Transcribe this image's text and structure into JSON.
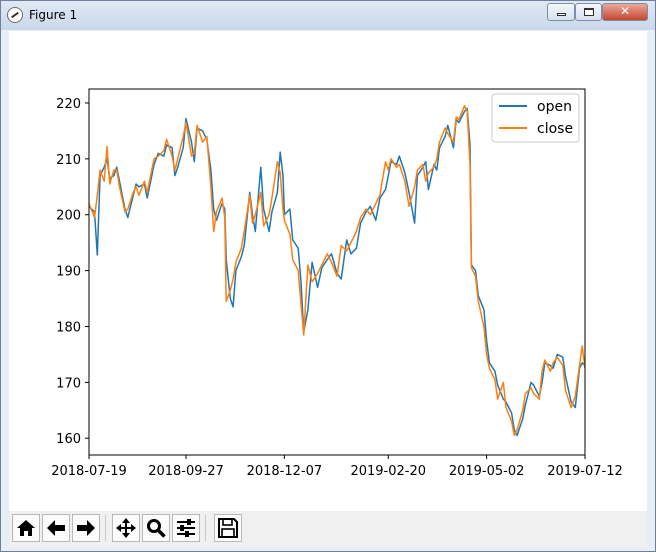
{
  "window": {
    "title": "Figure 1"
  },
  "toolbar": {
    "home_icon": "home-icon",
    "back_icon": "arrow-left-icon",
    "forward_icon": "arrow-right-icon",
    "pan_icon": "move-icon",
    "zoom_icon": "magnifier-icon",
    "configure_icon": "sliders-icon",
    "save_icon": "floppy-disk-icon"
  },
  "chart_data": {
    "type": "line",
    "title": "",
    "xlabel": "",
    "ylabel": "",
    "x_ticks": [
      "2018-07-19",
      "2018-09-27",
      "2018-12-07",
      "2019-02-20",
      "2019-05-02",
      "2019-07-12"
    ],
    "y_ticks": [
      "160",
      "170",
      "180",
      "190",
      "200",
      "210",
      "220"
    ],
    "xlim": [
      "2018-07-19",
      "2019-07-12"
    ],
    "ylim": [
      157,
      222.5
    ],
    "grid": false,
    "legend": "top-right",
    "colors": {
      "open": "#1f77b4",
      "close": "#ff7f0e"
    },
    "series": [
      {
        "name": "open",
        "points": [
          [
            "2018-07-19",
            201.5
          ],
          [
            "2018-07-23",
            200.5
          ],
          [
            "2018-07-25",
            192.8
          ],
          [
            "2018-07-27",
            207.0
          ],
          [
            "2018-07-30",
            208.5
          ],
          [
            "2018-08-01",
            210.0
          ],
          [
            "2018-08-03",
            206.5
          ],
          [
            "2018-08-06",
            207.0
          ],
          [
            "2018-08-08",
            208.5
          ],
          [
            "2018-08-10",
            206.0
          ],
          [
            "2018-08-14",
            201.0
          ],
          [
            "2018-08-16",
            199.5
          ],
          [
            "2018-08-20",
            203.5
          ],
          [
            "2018-08-22",
            205.5
          ],
          [
            "2018-08-24",
            205.0
          ],
          [
            "2018-08-28",
            205.5
          ],
          [
            "2018-08-30",
            203.0
          ],
          [
            "2018-09-04",
            209.0
          ],
          [
            "2018-09-07",
            211.0
          ],
          [
            "2018-09-11",
            210.5
          ],
          [
            "2018-09-13",
            212.5
          ],
          [
            "2018-09-17",
            212.0
          ],
          [
            "2018-09-19",
            207.0
          ],
          [
            "2018-09-21",
            208.5
          ],
          [
            "2018-09-25",
            212.0
          ],
          [
            "2018-09-27",
            217.2
          ],
          [
            "2018-10-01",
            213.0
          ],
          [
            "2018-10-03",
            209.5
          ],
          [
            "2018-10-05",
            215.5
          ],
          [
            "2018-10-09",
            215.0
          ],
          [
            "2018-10-12",
            213.5
          ],
          [
            "2018-10-15",
            208.0
          ],
          [
            "2018-10-17",
            201.0
          ],
          [
            "2018-10-19",
            199.0
          ],
          [
            "2018-10-23",
            202.0
          ],
          [
            "2018-10-25",
            201.0
          ],
          [
            "2018-10-26",
            192.0
          ],
          [
            "2018-10-29",
            185.0
          ],
          [
            "2018-10-31",
            183.5
          ],
          [
            "2018-11-02",
            190.0
          ],
          [
            "2018-11-06",
            192.5
          ],
          [
            "2018-11-08",
            194.5
          ],
          [
            "2018-11-12",
            204.0
          ],
          [
            "2018-11-14",
            200.0
          ],
          [
            "2018-11-16",
            197.0
          ],
          [
            "2018-11-20",
            208.5
          ],
          [
            "2018-11-22",
            201.0
          ],
          [
            "2018-11-26",
            197.0
          ],
          [
            "2018-11-28",
            200.5
          ],
          [
            "2018-12-02",
            204.0
          ],
          [
            "2018-12-04",
            211.2
          ],
          [
            "2018-12-06",
            207.0
          ],
          [
            "2018-12-07",
            200.0
          ],
          [
            "2018-12-11",
            201.0
          ],
          [
            "2018-12-13",
            195.5
          ],
          [
            "2018-12-17",
            194.0
          ],
          [
            "2018-12-19",
            188.0
          ],
          [
            "2018-12-21",
            179.0
          ],
          [
            "2018-12-24",
            183.0
          ],
          [
            "2018-12-27",
            191.5
          ],
          [
            "2018-12-31",
            187.0
          ],
          [
            "2019-01-03",
            190.5
          ],
          [
            "2019-01-07",
            192.0
          ],
          [
            "2019-01-10",
            193.0
          ],
          [
            "2019-01-14",
            189.5
          ],
          [
            "2019-01-17",
            188.5
          ],
          [
            "2019-01-21",
            195.5
          ],
          [
            "2019-01-24",
            193.0
          ],
          [
            "2019-01-28",
            194.0
          ],
          [
            "2019-01-31",
            198.5
          ],
          [
            "2019-02-04",
            200.5
          ],
          [
            "2019-02-07",
            201.5
          ],
          [
            "2019-02-11",
            199.0
          ],
          [
            "2019-02-14",
            203.0
          ],
          [
            "2019-02-18",
            204.5
          ],
          [
            "2019-02-20",
            207.0
          ],
          [
            "2019-02-22",
            209.5
          ],
          [
            "2019-02-26",
            209.0
          ],
          [
            "2019-02-28",
            210.5
          ],
          [
            "2019-03-04",
            207.5
          ],
          [
            "2019-03-07",
            204.0
          ],
          [
            "2019-03-11",
            198.5
          ],
          [
            "2019-03-13",
            207.0
          ],
          [
            "2019-03-17",
            208.5
          ],
          [
            "2019-03-19",
            209.5
          ],
          [
            "2019-03-21",
            204.5
          ],
          [
            "2019-03-25",
            209.0
          ],
          [
            "2019-03-27",
            208.0
          ],
          [
            "2019-03-29",
            212.0
          ],
          [
            "2019-04-02",
            214.0
          ],
          [
            "2019-04-04",
            216.0
          ],
          [
            "2019-04-08",
            212.0
          ],
          [
            "2019-04-10",
            217.0
          ],
          [
            "2019-04-12",
            216.5
          ],
          [
            "2019-04-16",
            218.5
          ],
          [
            "2019-04-18",
            219.0
          ],
          [
            "2019-04-20",
            212.5
          ],
          [
            "2019-04-21",
            191.0
          ],
          [
            "2019-04-24",
            190.0
          ],
          [
            "2019-04-26",
            185.5
          ],
          [
            "2019-04-30",
            183.0
          ],
          [
            "2019-05-02",
            177.5
          ],
          [
            "2019-05-04",
            173.5
          ],
          [
            "2019-05-08",
            172.0
          ],
          [
            "2019-05-10",
            169.5
          ],
          [
            "2019-05-14",
            167.0
          ],
          [
            "2019-05-16",
            166.5
          ],
          [
            "2019-05-20",
            164.5
          ],
          [
            "2019-05-22",
            161.5
          ],
          [
            "2019-05-24",
            160.5
          ],
          [
            "2019-05-28",
            163.5
          ],
          [
            "2019-05-30",
            166.0
          ],
          [
            "2019-06-03",
            170.0
          ],
          [
            "2019-06-05",
            169.5
          ],
          [
            "2019-06-09",
            167.5
          ],
          [
            "2019-06-11",
            170.0
          ],
          [
            "2019-06-13",
            173.5
          ],
          [
            "2019-06-17",
            173.0
          ],
          [
            "2019-06-19",
            172.5
          ],
          [
            "2019-06-22",
            175.0
          ],
          [
            "2019-06-26",
            174.5
          ],
          [
            "2019-06-28",
            171.0
          ],
          [
            "2019-07-02",
            166.5
          ],
          [
            "2019-07-05",
            165.5
          ],
          [
            "2019-07-08",
            172.5
          ],
          [
            "2019-07-10",
            173.5
          ],
          [
            "2019-07-12",
            173.0
          ]
        ]
      },
      {
        "name": "close",
        "points": [
          [
            "2018-07-19",
            202.0
          ],
          [
            "2018-07-23",
            199.5
          ],
          [
            "2018-07-25",
            203.5
          ],
          [
            "2018-07-27",
            208.0
          ],
          [
            "2018-07-30",
            206.0
          ],
          [
            "2018-08-01",
            212.2
          ],
          [
            "2018-08-03",
            205.5
          ],
          [
            "2018-08-06",
            208.0
          ],
          [
            "2018-08-08",
            208.0
          ],
          [
            "2018-08-10",
            205.0
          ],
          [
            "2018-08-14",
            200.5
          ],
          [
            "2018-08-16",
            201.0
          ],
          [
            "2018-08-20",
            204.0
          ],
          [
            "2018-08-22",
            205.0
          ],
          [
            "2018-08-24",
            203.5
          ],
          [
            "2018-08-28",
            206.0
          ],
          [
            "2018-08-30",
            204.0
          ],
          [
            "2018-09-04",
            210.0
          ],
          [
            "2018-09-07",
            210.5
          ],
          [
            "2018-09-11",
            211.5
          ],
          [
            "2018-09-13",
            213.5
          ],
          [
            "2018-09-17",
            210.5
          ],
          [
            "2018-09-19",
            208.0
          ],
          [
            "2018-09-21",
            210.0
          ],
          [
            "2018-09-25",
            214.0
          ],
          [
            "2018-09-27",
            216.5
          ],
          [
            "2018-10-01",
            210.5
          ],
          [
            "2018-10-03",
            211.0
          ],
          [
            "2018-10-05",
            216.0
          ],
          [
            "2018-10-09",
            213.0
          ],
          [
            "2018-10-12",
            214.0
          ],
          [
            "2018-10-15",
            205.0
          ],
          [
            "2018-10-17",
            197.0
          ],
          [
            "2018-10-19",
            200.5
          ],
          [
            "2018-10-23",
            203.0
          ],
          [
            "2018-10-25",
            199.5
          ],
          [
            "2018-10-26",
            184.5
          ],
          [
            "2018-10-29",
            186.5
          ],
          [
            "2018-10-31",
            188.5
          ],
          [
            "2018-11-02",
            191.5
          ],
          [
            "2018-11-06",
            194.0
          ],
          [
            "2018-11-08",
            197.0
          ],
          [
            "2018-11-12",
            203.5
          ],
          [
            "2018-11-14",
            198.5
          ],
          [
            "2018-11-16",
            200.0
          ],
          [
            "2018-11-20",
            204.0
          ],
          [
            "2018-11-22",
            198.0
          ],
          [
            "2018-11-26",
            200.0
          ],
          [
            "2018-11-28",
            203.0
          ],
          [
            "2018-12-02",
            209.5
          ],
          [
            "2018-12-04",
            207.5
          ],
          [
            "2018-12-06",
            201.0
          ],
          [
            "2018-12-07",
            199.0
          ],
          [
            "2018-12-11",
            196.5
          ],
          [
            "2018-12-13",
            192.0
          ],
          [
            "2018-12-17",
            190.0
          ],
          [
            "2018-12-19",
            184.0
          ],
          [
            "2018-12-21",
            178.5
          ],
          [
            "2018-12-24",
            191.0
          ],
          [
            "2018-12-27",
            188.0
          ],
          [
            "2018-12-31",
            189.5
          ],
          [
            "2019-01-03",
            191.0
          ],
          [
            "2019-01-07",
            193.0
          ],
          [
            "2019-01-10",
            191.5
          ],
          [
            "2019-01-14",
            189.0
          ],
          [
            "2019-01-17",
            194.5
          ],
          [
            "2019-01-21",
            193.5
          ],
          [
            "2019-01-24",
            195.0
          ],
          [
            "2019-01-28",
            197.0
          ],
          [
            "2019-01-31",
            199.5
          ],
          [
            "2019-02-04",
            201.0
          ],
          [
            "2019-02-07",
            200.0
          ],
          [
            "2019-02-11",
            202.0
          ],
          [
            "2019-02-14",
            203.5
          ],
          [
            "2019-02-18",
            209.5
          ],
          [
            "2019-02-20",
            208.0
          ],
          [
            "2019-02-22",
            210.0
          ],
          [
            "2019-02-26",
            208.5
          ],
          [
            "2019-02-28",
            209.0
          ],
          [
            "2019-03-04",
            206.0
          ],
          [
            "2019-03-07",
            201.5
          ],
          [
            "2019-03-11",
            205.0
          ],
          [
            "2019-03-13",
            208.0
          ],
          [
            "2019-03-17",
            209.0
          ],
          [
            "2019-03-19",
            206.0
          ],
          [
            "2019-03-21",
            207.5
          ],
          [
            "2019-03-25",
            208.5
          ],
          [
            "2019-03-27",
            210.0
          ],
          [
            "2019-03-29",
            213.0
          ],
          [
            "2019-04-02",
            215.5
          ],
          [
            "2019-04-04",
            214.5
          ],
          [
            "2019-04-08",
            213.0
          ],
          [
            "2019-04-10",
            217.5
          ],
          [
            "2019-04-12",
            217.0
          ],
          [
            "2019-04-16",
            219.5
          ],
          [
            "2019-04-18",
            218.5
          ],
          [
            "2019-04-20",
            209.0
          ],
          [
            "2019-04-21",
            190.5
          ],
          [
            "2019-04-24",
            189.0
          ],
          [
            "2019-04-26",
            184.5
          ],
          [
            "2019-04-30",
            180.0
          ],
          [
            "2019-05-02",
            175.0
          ],
          [
            "2019-05-04",
            172.5
          ],
          [
            "2019-05-08",
            170.5
          ],
          [
            "2019-05-10",
            167.0
          ],
          [
            "2019-05-14",
            170.0
          ],
          [
            "2019-05-16",
            165.5
          ],
          [
            "2019-05-20",
            163.0
          ],
          [
            "2019-05-22",
            160.5
          ],
          [
            "2019-05-24",
            161.5
          ],
          [
            "2019-05-28",
            165.0
          ],
          [
            "2019-05-30",
            168.0
          ],
          [
            "2019-06-03",
            169.0
          ],
          [
            "2019-06-05",
            168.0
          ],
          [
            "2019-06-09",
            167.0
          ],
          [
            "2019-06-11",
            172.0
          ],
          [
            "2019-06-13",
            174.0
          ],
          [
            "2019-06-17",
            172.0
          ],
          [
            "2019-06-19",
            173.5
          ],
          [
            "2019-06-22",
            174.5
          ],
          [
            "2019-06-26",
            173.0
          ],
          [
            "2019-06-28",
            168.5
          ],
          [
            "2019-07-02",
            165.5
          ],
          [
            "2019-07-05",
            167.5
          ],
          [
            "2019-07-08",
            173.0
          ],
          [
            "2019-07-10",
            176.5
          ],
          [
            "2019-07-12",
            172.5
          ]
        ]
      }
    ]
  }
}
